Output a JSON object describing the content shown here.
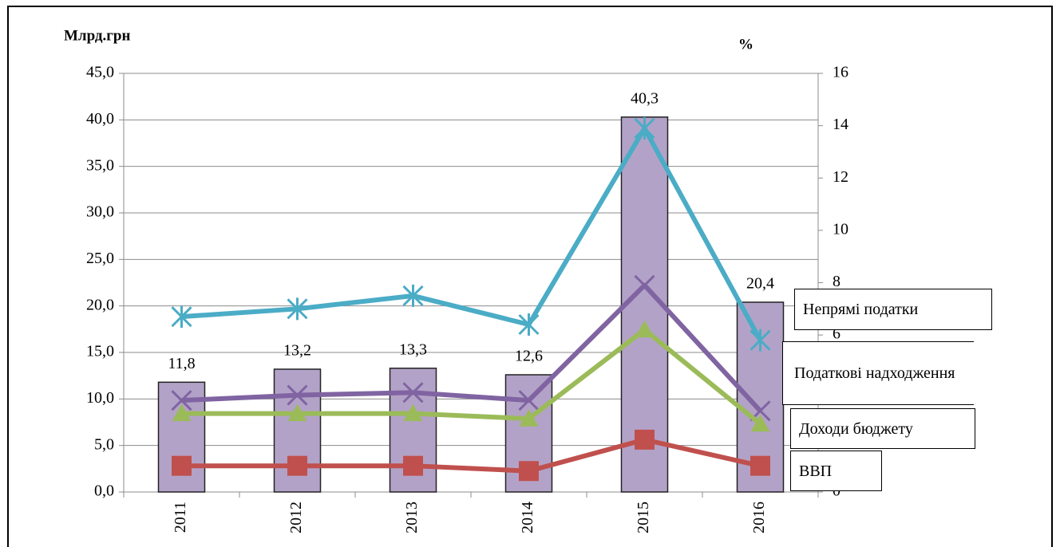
{
  "chart_data": {
    "type": "bar",
    "y_label": "Млрд.грн",
    "y2_label": "%",
    "categories": [
      "2011",
      "2012",
      "2013",
      "2014",
      "2015",
      "2016"
    ],
    "values": [
      11.8,
      13.2,
      13.3,
      12.6,
      40.3,
      20.4
    ],
    "value_labels": [
      "11,8",
      "13,2",
      "13,3",
      "12,6",
      "40,3",
      "20,4"
    ],
    "color": "#b3a2c7",
    "ylim": [
      0,
      45
    ],
    "yticks": [
      {
        "value": 0,
        "label": "0,0"
      },
      {
        "value": 5,
        "label": "5,0"
      },
      {
        "value": 10,
        "label": "10,0"
      },
      {
        "value": 15,
        "label": "15,0"
      },
      {
        "value": 20,
        "label": "20,0"
      },
      {
        "value": 25,
        "label": "25,0"
      },
      {
        "value": 30,
        "label": "30,0"
      },
      {
        "value": 35,
        "label": "35,0"
      },
      {
        "value": 40,
        "label": "40,0"
      },
      {
        "value": 45,
        "label": "45,0"
      }
    ],
    "y2lim": [
      0,
      16
    ],
    "y2ticks": [
      0,
      2,
      4,
      6,
      8,
      10,
      12,
      14,
      16
    ],
    "grid": true,
    "series": [
      {
        "name": "Непрямі податки",
        "type": "line",
        "axis": "y2",
        "color": "#4bacc6",
        "marker": "asterisk",
        "values": [
          6.7,
          7.0,
          7.5,
          6.4,
          13.9,
          5.8
        ]
      },
      {
        "name": "Податкові надходження",
        "type": "line",
        "axis": "y2",
        "color": "#8064a2",
        "marker": "x",
        "values": [
          3.5,
          3.7,
          3.8,
          3.5,
          7.9,
          3.1
        ]
      },
      {
        "name": "Доходи бюджету",
        "type": "line",
        "axis": "y2",
        "color": "#9bbb59",
        "marker": "triangle",
        "values": [
          3.0,
          3.0,
          3.0,
          2.8,
          6.2,
          2.6
        ]
      },
      {
        "name": "ВВП",
        "type": "line",
        "axis": "y2",
        "color": "#c0504d",
        "marker": "square",
        "values": [
          1.0,
          1.0,
          1.0,
          0.8,
          2.0,
          1.0
        ]
      }
    ]
  }
}
